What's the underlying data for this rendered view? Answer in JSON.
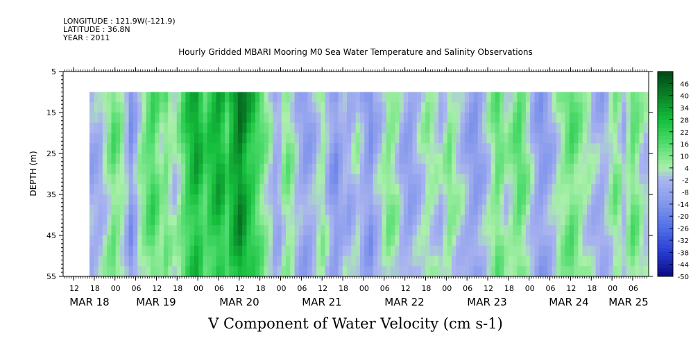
{
  "header": {
    "longitude": "LONGITUDE : 121.9W(-121.9)",
    "latitude": "LATITUDE : 36.8N",
    "year": "YEAR : 2011"
  },
  "chart_data": {
    "type": "heatmap",
    "title": "Hourly Gridded MBARI Mooring M0 Sea Water Temperature and Salinity Observations",
    "xlabel": "V Component of Water Velocity (cm s-1)",
    "ylabel": "DEPTH (m)",
    "y_ticks": [
      5,
      15,
      25,
      35,
      45,
      55
    ],
    "ylim": [
      5,
      55
    ],
    "y_inverted": true,
    "data_depth_range": [
      10,
      55
    ],
    "x_hour_ticks": [
      "12",
      "18",
      "00",
      "06",
      "12",
      "18",
      "00",
      "06",
      "12",
      "18",
      "00",
      "06",
      "12",
      "18",
      "00",
      "06",
      "12",
      "18",
      "00",
      "06",
      "12",
      "18",
      "00",
      "06",
      "12",
      "18",
      "00",
      "06",
      "12",
      "18",
      "00",
      "06"
    ],
    "x_day_labels": [
      "MAR 18",
      "MAR 19",
      "MAR 20",
      "MAR 21",
      "MAR 22",
      "MAR 23",
      "MAR 24",
      "MAR 25"
    ],
    "colorbar_ticks": [
      46,
      40,
      34,
      28,
      22,
      16,
      10,
      4,
      -2,
      -8,
      -14,
      -20,
      -26,
      -32,
      -38,
      -44,
      -50
    ],
    "colorbar_range": [
      -50,
      52
    ],
    "time_profile_v": [
      -6,
      -5,
      -4,
      2,
      8,
      14,
      10,
      6,
      -2,
      -14,
      -6,
      4,
      10,
      16,
      20,
      14,
      8,
      12,
      6,
      2,
      8,
      16,
      24,
      30,
      34,
      28,
      20,
      26,
      30,
      34,
      30,
      22,
      32,
      38,
      44,
      38,
      30,
      26,
      20,
      14,
      8,
      2,
      -6,
      -4,
      6,
      10,
      6,
      -2,
      -6,
      -10,
      -8,
      -4,
      2,
      6,
      -2,
      -10,
      -14,
      -8,
      -4,
      -6,
      -2,
      2,
      -4,
      -10,
      -14,
      -6,
      -2,
      4,
      10,
      8,
      4,
      -4,
      -8,
      -10,
      -6,
      -2,
      2,
      6,
      4,
      2,
      -2,
      4,
      10,
      6,
      2,
      -2,
      -6,
      -10,
      -12,
      -8,
      -4,
      2,
      8,
      14,
      10,
      4,
      6,
      12,
      16,
      12,
      6,
      -2,
      -8,
      -12,
      -10,
      -6,
      -2,
      4,
      8,
      12,
      16,
      12,
      8,
      4,
      2,
      -2,
      -4,
      -6,
      -2,
      4,
      10,
      6,
      -2,
      6,
      14,
      10,
      4,
      0
    ]
  }
}
